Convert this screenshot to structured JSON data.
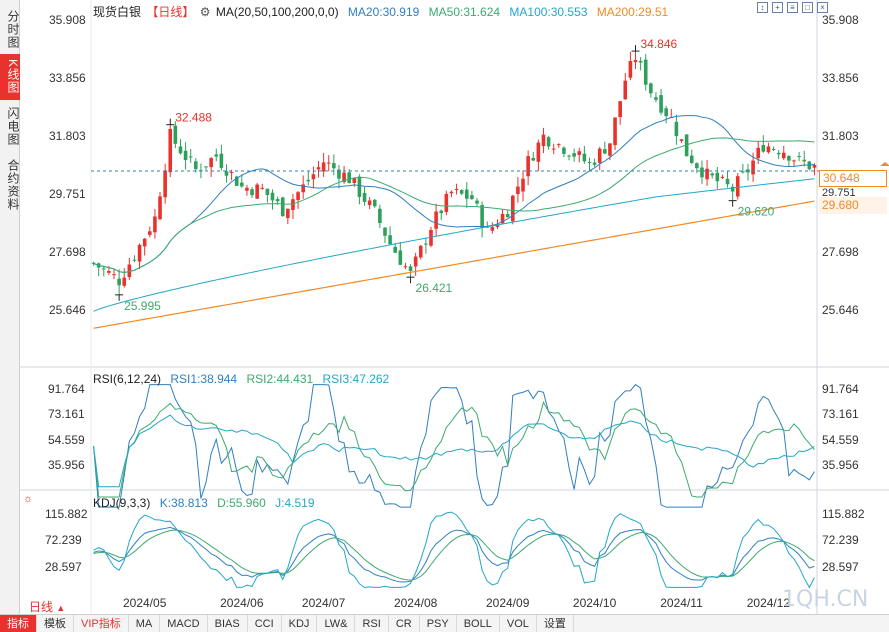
{
  "sidebar_tabs": [
    {
      "label": "分时图",
      "active": false
    },
    {
      "label": "K线图",
      "active": true
    },
    {
      "label": "闪电图",
      "active": false
    },
    {
      "label": "合约资料",
      "active": false
    }
  ],
  "header": {
    "symbol": "现货白银",
    "period_tag": "【日线】",
    "ma_params": "MA(20,50,100,200,0,0)",
    "ma20": "MA20:30.919",
    "ma50": "MA50:31.624",
    "ma100": "MA100:30.553",
    "ma200": "MA200:29.51"
  },
  "rsi_header": {
    "name": "RSI(6,12,24)",
    "rsi1": "RSI1:38.944",
    "rsi2": "RSI2:44.431",
    "rsi3": "RSI3:47.262"
  },
  "kdj_header": {
    "name": "KDJ(9,3,3)",
    "k": "K:38.813",
    "d": "D:55.960",
    "j": "J:4.519"
  },
  "tool_icons": [
    "expand-icon",
    "crosshair-icon",
    "list-icon",
    "fit-icon",
    "close-icon"
  ],
  "current_price": "30.648",
  "ma200_price": "29.680",
  "daily_selector": "日线",
  "watermark": "1QH.CN",
  "bottom_tabs": [
    "指标",
    "模板",
    "VIP指标",
    "MA",
    "MACD",
    "BIAS",
    "CCI",
    "KDJ",
    "LW&",
    "RSI",
    "CR",
    "PSY",
    "BOLL",
    "VOL",
    "设置"
  ],
  "colors": {
    "up": "#e8322e",
    "down": "#2fa05c",
    "ma20": "#2f7fc1",
    "ma50": "#3caa6e",
    "ma100": "#23a6c8",
    "ma200": "#f08a24",
    "rsi1": "#2f7fc1",
    "rsi2": "#3caa6e",
    "rsi3": "#23a6c8",
    "high_label": "#e8322e",
    "low_label": "#3caa6e"
  },
  "chart_data": {
    "type": "candlestick",
    "main": {
      "y_ticks": [
        "35.908",
        "33.856",
        "31.803",
        "29.751",
        "27.698",
        "25.646"
      ],
      "ylim": [
        25.646,
        35.908
      ],
      "annotations": [
        {
          "label": "32.488",
          "kind": "high",
          "x_index": 15
        },
        {
          "label": "25.995",
          "kind": "low",
          "x_index": 5
        },
        {
          "label": "26.421",
          "kind": "low",
          "x_index": 62
        },
        {
          "label": "34.846",
          "kind": "high",
          "x_index": 106
        },
        {
          "label": "29.620",
          "kind": "low",
          "x_index": 125
        }
      ],
      "x_labels": [
        {
          "label": "2024/05",
          "x_index": 10
        },
        {
          "label": "2024/06",
          "x_index": 29
        },
        {
          "label": "2024/07",
          "x_index": 45
        },
        {
          "label": "2024/08",
          "x_index": 63
        },
        {
          "label": "2024/09",
          "x_index": 81
        },
        {
          "label": "2024/10",
          "x_index": 98
        },
        {
          "label": "2024/11",
          "x_index": 115
        },
        {
          "label": "2024/12",
          "x_index": 132
        }
      ]
    },
    "rsi": {
      "y_ticks": [
        "91.764",
        "73.161",
        "54.559",
        "35.956"
      ],
      "ylim": [
        25,
        100
      ]
    },
    "kdj": {
      "y_ticks": [
        "115.882",
        "72.239",
        "28.597"
      ],
      "ylim": [
        5,
        125
      ]
    }
  }
}
